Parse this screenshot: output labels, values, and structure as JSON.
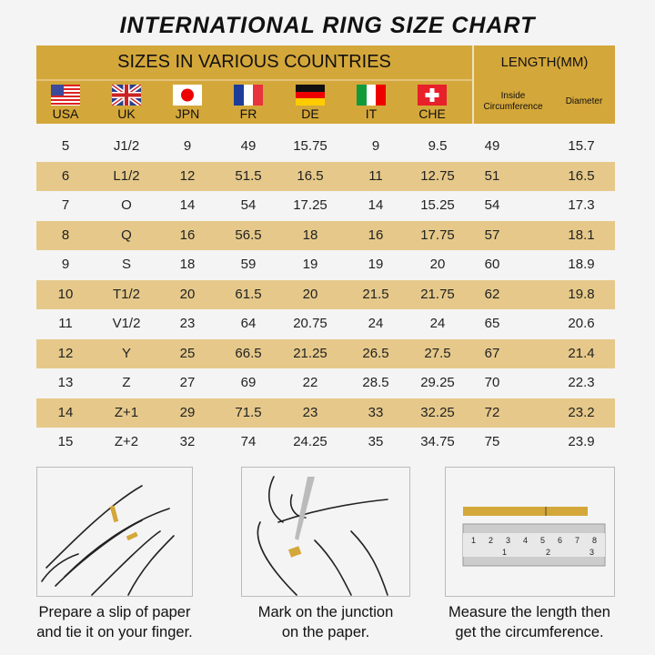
{
  "title": "INTERNATIONAL RING SIZE CHART",
  "header": {
    "sizes_label": "SIZES IN VARIOUS COUNTRIES",
    "length_label": "LENGTH(MM)",
    "countries": [
      {
        "code": "USA",
        "flag": "us-flag-icon"
      },
      {
        "code": "UK",
        "flag": "uk-flag-icon"
      },
      {
        "code": "JPN",
        "flag": "japan-flag-icon"
      },
      {
        "code": "FR",
        "flag": "france-flag-icon"
      },
      {
        "code": "DE",
        "flag": "germany-flag-icon"
      },
      {
        "code": "IT",
        "flag": "italy-flag-icon"
      },
      {
        "code": "CHE",
        "flag": "switzerland-flag-icon"
      }
    ],
    "inside_circumference": "Inside Circumference",
    "diameter": "Diameter"
  },
  "colors": {
    "header": "#d4a73a",
    "stripe": "#e6c98a",
    "background": "#f4f4f4"
  },
  "rows": [
    [
      "5",
      "J1/2",
      "9",
      "49",
      "15.75",
      "9",
      "9.5",
      "49",
      "15.7"
    ],
    [
      "6",
      "L1/2",
      "12",
      "51.5",
      "16.5",
      "11",
      "12.75",
      "51",
      "16.5"
    ],
    [
      "7",
      "O",
      "14",
      "54",
      "17.25",
      "14",
      "15.25",
      "54",
      "17.3"
    ],
    [
      "8",
      "Q",
      "16",
      "56.5",
      "18",
      "16",
      "17.75",
      "57",
      "18.1"
    ],
    [
      "9",
      "S",
      "18",
      "59",
      "19",
      "19",
      "20",
      "60",
      "18.9"
    ],
    [
      "10",
      "T1/2",
      "20",
      "61.5",
      "20",
      "21.5",
      "21.75",
      "62",
      "19.8"
    ],
    [
      "11",
      "V1/2",
      "23",
      "64",
      "20.75",
      "24",
      "24",
      "65",
      "20.6"
    ],
    [
      "12",
      "Y",
      "25",
      "66.5",
      "21.25",
      "26.5",
      "27.5",
      "67",
      "21.4"
    ],
    [
      "13",
      "Z",
      "27",
      "69",
      "22",
      "28.5",
      "29.25",
      "70",
      "22.3"
    ],
    [
      "14",
      "Z+1",
      "29",
      "71.5",
      "23",
      "33",
      "32.25",
      "72",
      "23.2"
    ],
    [
      "15",
      "Z+2",
      "32",
      "74",
      "24.25",
      "35",
      "34.75",
      "75",
      "23.9"
    ]
  ],
  "steps": [
    {
      "line1": "Prepare a slip of paper",
      "line2": "and tie it on your finger."
    },
    {
      "line1": "Mark on the junction",
      "line2": "on the paper."
    },
    {
      "line1": "Measure the length then",
      "line2": "get the circumference."
    }
  ],
  "ruler": {
    "top_marks": [
      "1",
      "2",
      "3",
      "4",
      "5",
      "6",
      "7",
      "8"
    ],
    "bottom_marks": [
      "1",
      "2",
      "3"
    ]
  }
}
